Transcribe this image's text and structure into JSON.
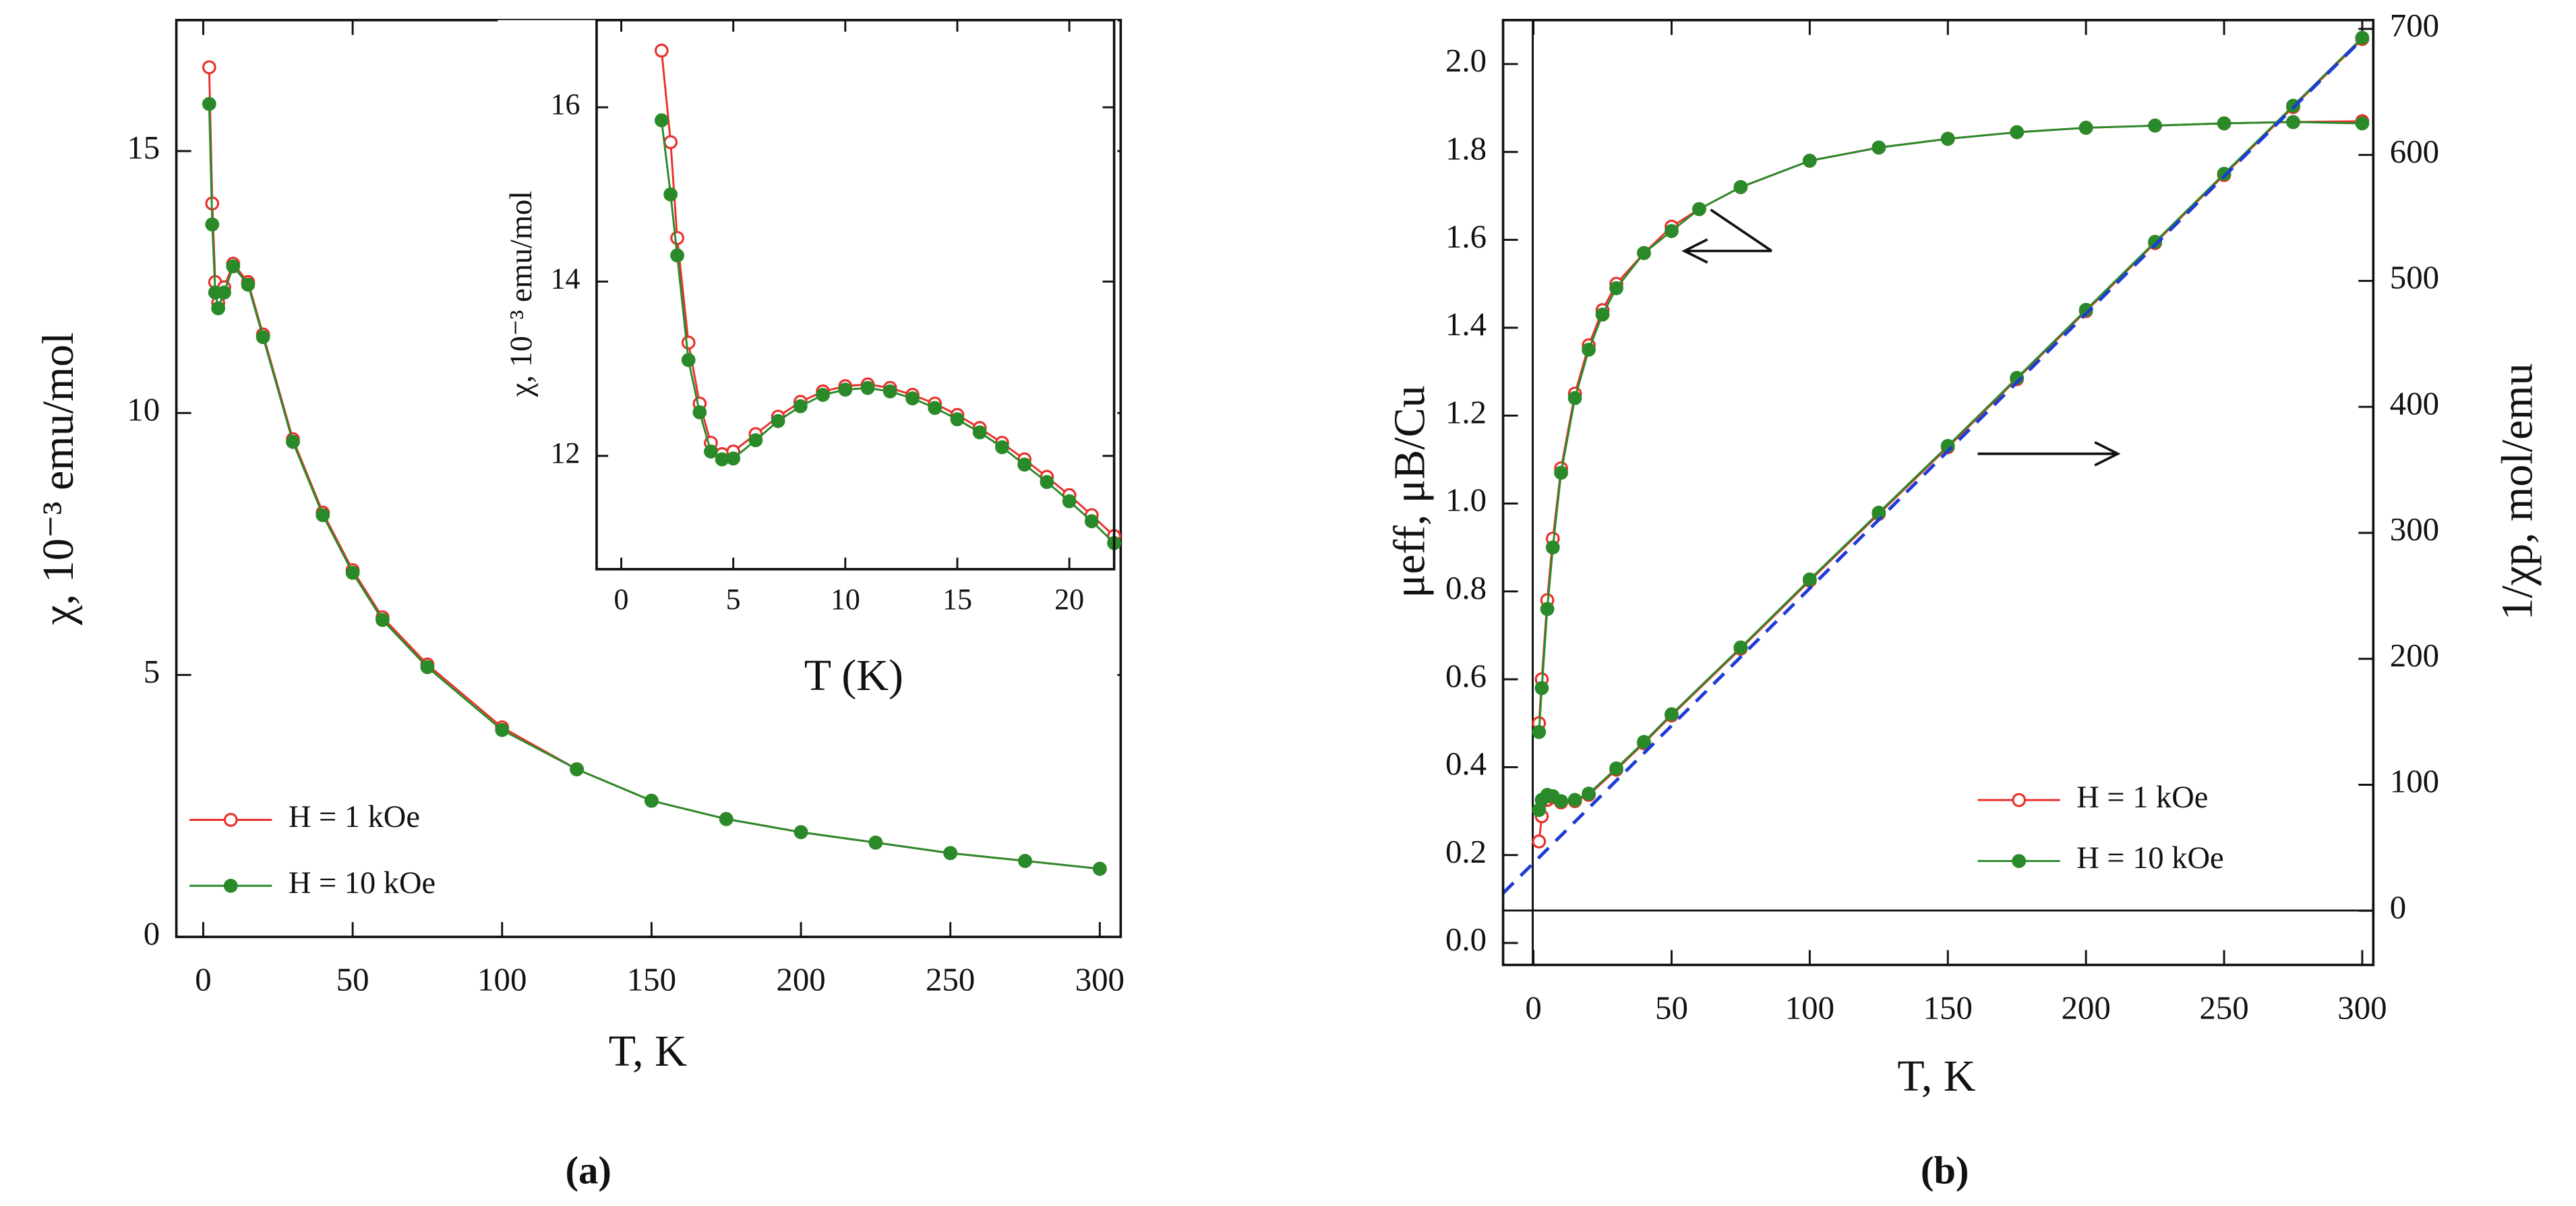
{
  "chart_data": [
    {
      "type": "line",
      "caption": "(a)",
      "x_label": "T,  K",
      "y_label": "χ, 10⁻³ emu/mol",
      "xlim": [
        -9,
        307
      ],
      "xticks": [
        0,
        50,
        100,
        150,
        200,
        250,
        300
      ],
      "ylim": [
        0,
        17.5
      ],
      "yticks": [
        0,
        5,
        10,
        15
      ],
      "series": [
        {
          "name": "H = 1  kOe",
          "color": "#e8312c",
          "marker": "open",
          "x": [
            2,
            3,
            4,
            5,
            7,
            10,
            15,
            20,
            30,
            40,
            50,
            60,
            75,
            100,
            125,
            150,
            175,
            200,
            225,
            250,
            275,
            300
          ],
          "values": [
            16.6,
            14.0,
            12.5,
            12.1,
            12.4,
            12.85,
            12.5,
            11.5,
            9.5,
            8.1,
            7.0,
            6.1,
            5.2,
            4.0,
            3.2,
            2.6,
            2.25,
            2.0,
            1.8,
            1.6,
            1.45,
            1.3
          ]
        },
        {
          "name": "H = 10  kOe",
          "color": "#2a8a2a",
          "marker": "filled",
          "x": [
            2,
            3,
            4,
            5,
            7,
            10,
            15,
            20,
            30,
            40,
            50,
            60,
            75,
            100,
            125,
            150,
            175,
            200,
            225,
            250,
            275,
            300
          ],
          "values": [
            15.9,
            13.6,
            12.3,
            12.0,
            12.3,
            12.8,
            12.45,
            11.45,
            9.45,
            8.05,
            6.95,
            6.05,
            5.15,
            3.95,
            3.2,
            2.6,
            2.25,
            2.0,
            1.8,
            1.6,
            1.45,
            1.3
          ]
        }
      ]
    },
    {
      "type": "line",
      "x_label": "T  (K)",
      "y_label": "χ, 10⁻³ emu/mol",
      "xlim": [
        -1.1,
        22
      ],
      "xticks": [
        0,
        5,
        10,
        15,
        20
      ],
      "ylim": [
        10.7,
        17
      ],
      "yticks": [
        12,
        14,
        16
      ],
      "series": [
        {
          "color": "#e8312c",
          "marker": "open",
          "x": [
            1.8,
            2.2,
            2.5,
            3,
            3.5,
            4,
            4.5,
            5,
            6,
            7,
            8,
            9,
            10,
            11,
            12,
            13,
            14,
            15,
            16,
            17,
            18,
            19,
            20,
            21,
            22
          ],
          "values": [
            16.65,
            15.6,
            14.5,
            13.3,
            12.6,
            12.15,
            12.02,
            12.05,
            12.25,
            12.45,
            12.62,
            12.74,
            12.8,
            12.82,
            12.78,
            12.7,
            12.6,
            12.47,
            12.32,
            12.15,
            11.96,
            11.76,
            11.55,
            11.32,
            11.08
          ]
        },
        {
          "color": "#2a8a2a",
          "marker": "filled",
          "x": [
            1.8,
            2.2,
            2.5,
            3,
            3.5,
            4,
            4.5,
            5,
            6,
            7,
            8,
            9,
            10,
            11,
            12,
            13,
            14,
            15,
            16,
            17,
            18,
            19,
            20,
            21,
            22
          ],
          "values": [
            15.85,
            15.0,
            14.3,
            13.1,
            12.5,
            12.05,
            11.96,
            11.97,
            12.18,
            12.4,
            12.57,
            12.7,
            12.76,
            12.78,
            12.74,
            12.66,
            12.55,
            12.42,
            12.27,
            12.1,
            11.9,
            11.7,
            11.48,
            11.25,
            11.0
          ]
        }
      ]
    },
    {
      "type": "line",
      "caption": "(b)",
      "x_label": "T, K",
      "y_label": "μeff, μB/Cu",
      "y2_label": "1/χp, mol/emu",
      "xlim": [
        -11,
        304
      ],
      "xticks": [
        0,
        50,
        100,
        150,
        200,
        250,
        300
      ],
      "ylim": [
        -0.05,
        2.1
      ],
      "yticks": [
        {
          "value": 0,
          "label": "0.0"
        },
        0.2,
        0.4,
        0.6,
        0.8,
        {
          "value": 1,
          "label": "1.0"
        },
        1.2,
        1.4,
        1.6,
        1.8,
        {
          "value": 2,
          "label": "2.0"
        }
      ],
      "y2lim": [
        -43,
        707
      ],
      "y2ticks": [
        0,
        100,
        200,
        300,
        400,
        500,
        600,
        700
      ],
      "series": [
        {
          "name": "H = 1  kOe",
          "color": "#e8312c",
          "marker": "open",
          "x": [
            2,
            3,
            5,
            7,
            10,
            15,
            20,
            25,
            30,
            40,
            50,
            60,
            75,
            100,
            125,
            150,
            175,
            200,
            225,
            250,
            275,
            300
          ],
          "values": [
            0.5,
            0.6,
            0.78,
            0.92,
            1.08,
            1.25,
            1.36,
            1.44,
            1.5,
            1.57,
            1.63,
            1.67,
            1.72,
            1.78,
            1.81,
            1.83,
            1.845,
            1.855,
            1.86,
            1.865,
            1.868,
            1.87
          ]
        },
        {
          "name": "H = 10  kOe",
          "color": "#2a8a2a",
          "marker": "filled",
          "x": [
            2,
            3,
            5,
            7,
            10,
            15,
            20,
            25,
            30,
            40,
            50,
            60,
            75,
            100,
            125,
            150,
            175,
            200,
            225,
            250,
            275,
            300
          ],
          "values": [
            0.48,
            0.58,
            0.76,
            0.9,
            1.07,
            1.24,
            1.35,
            1.43,
            1.49,
            1.57,
            1.62,
            1.67,
            1.72,
            1.78,
            1.81,
            1.83,
            1.845,
            1.855,
            1.86,
            1.865,
            1.868,
            1.865
          ]
        },
        {
          "color": "#e8312c",
          "marker": "open",
          "axis": "y2",
          "x": [
            2,
            3,
            5,
            7,
            10,
            15,
            20,
            30,
            40,
            50,
            75,
            100,
            125,
            150,
            175,
            200,
            225,
            250,
            275,
            300
          ],
          "values": [
            55,
            75,
            88,
            90,
            86,
            87,
            92,
            112,
            133,
            155,
            208,
            262,
            315,
            368,
            422,
            476,
            530,
            584,
            638,
            692
          ]
        },
        {
          "color": "#2a8a2a",
          "marker": "filled",
          "axis": "y2",
          "x": [
            2,
            3,
            5,
            7,
            10,
            15,
            20,
            30,
            40,
            50,
            75,
            100,
            125,
            150,
            175,
            200,
            225,
            250,
            275,
            300
          ],
          "values": [
            80,
            88,
            92,
            91,
            87,
            88,
            93,
            113,
            134,
            156,
            209,
            263,
            316,
            369,
            423,
            477,
            531,
            585,
            639,
            693
          ]
        },
        {
          "color": "#1f3bd6",
          "dash": true,
          "axis": "y2",
          "x": [
            -11,
            300
          ],
          "values": [
            14,
            692
          ]
        }
      ]
    }
  ]
}
